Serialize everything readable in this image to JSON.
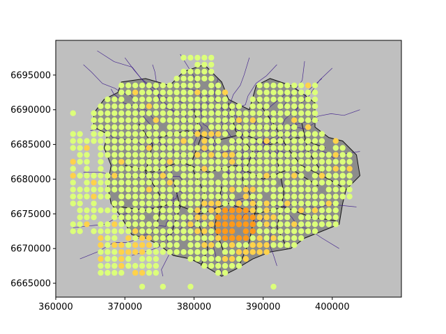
{
  "colors": {
    "figure_background": "#ffffff",
    "axes_background": "#bfbfbf",
    "polygon_fill": "#8c8c8c",
    "polygon_edge": "#111111",
    "road_lines": "#3b1a8a",
    "point_low": "#dcff7a",
    "point_mid": "#ffd24a",
    "point_high": "#ff9a1a"
  },
  "chart_data": {
    "type": "scatter",
    "title": "",
    "xlabel": "",
    "ylabel": "",
    "xlim": [
      360000,
      410000
    ],
    "ylim": [
      6663000,
      6700000
    ],
    "x_ticks": [
      360000,
      370000,
      380000,
      390000,
      400000
    ],
    "y_ticks": [
      6665000,
      6670000,
      6675000,
      6680000,
      6685000,
      6690000,
      6695000
    ],
    "x_tick_labels": [
      "360000",
      "370000",
      "380000",
      "390000",
      "400000"
    ],
    "y_tick_labels": [
      "6665000",
      "6670000",
      "6675000",
      "6680000",
      "6685000",
      "6690000",
      "6695000"
    ],
    "grid": false,
    "grid_spacing": 1000,
    "points_sample": [
      {
        "x": 362500,
        "y": 6689500,
        "value": "low"
      },
      {
        "x": 362500,
        "y": 6677500,
        "value": "low"
      },
      {
        "x": 372500,
        "y": 6664500,
        "value": "low"
      },
      {
        "x": 375500,
        "y": 6664500,
        "value": "low"
      },
      {
        "x": 379500,
        "y": 6664500,
        "value": "low"
      },
      {
        "x": 391500,
        "y": 6664500,
        "value": "low"
      },
      {
        "x": 380500,
        "y": 6697500,
        "value": "low"
      },
      {
        "x": 402500,
        "y": 6680500,
        "value": "low"
      },
      {
        "x": 386500,
        "y": 6673500,
        "value": "high"
      },
      {
        "x": 385500,
        "y": 6671500,
        "value": "high"
      },
      {
        "x": 370500,
        "y": 6671500,
        "value": "mid"
      },
      {
        "x": 397500,
        "y": 6675500,
        "value": "mid"
      }
    ]
  }
}
